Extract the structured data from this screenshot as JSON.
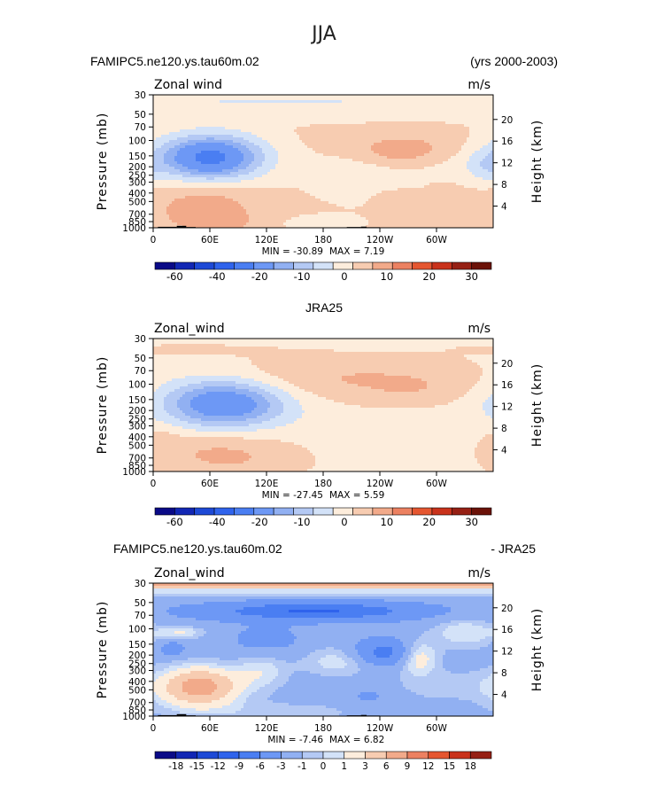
{
  "figure": {
    "title": "JJA",
    "top_case": "FAMIPC5.ne120.ys.tau60m.02",
    "years": "(yrs 2000-2003)",
    "mid_case": "JRA25",
    "diff_case": "FAMIPC5.ne120.ys.tau60m.02",
    "diff_suffix": "- JRA25"
  },
  "chart_data": [
    {
      "type": "heatmap",
      "panel_title": "FAMIPC5.ne120.ys.tau60m.02",
      "variable_label": "Zonal wind",
      "units": "m/s",
      "xlabel": "",
      "ylabel": "Pressure (mb)",
      "y2label": "Height (km)",
      "x_ticks": [
        "0",
        "60E",
        "120E",
        "180",
        "120W",
        "60W"
      ],
      "x_tick_values": [
        0,
        60,
        120,
        180,
        240,
        300
      ],
      "xlim": [
        0,
        360
      ],
      "y_ticks": [
        "30",
        "50",
        "70",
        "100",
        "150",
        "200",
        "250",
        "300",
        "400",
        "500",
        "700",
        "850",
        "1000"
      ],
      "y_tick_values": [
        30,
        50,
        70,
        100,
        150,
        200,
        250,
        300,
        400,
        500,
        700,
        850,
        1000
      ],
      "ylim": [
        1000,
        30
      ],
      "height_ticks": [
        "4",
        "8",
        "12",
        "16",
        "20"
      ],
      "height_tick_values": [
        4,
        8,
        12,
        16,
        20
      ],
      "min_label": "MIN = -30.89",
      "max_label": "MAX = 7.19",
      "min": -30.89,
      "max": 7.19,
      "colorbar_labels": [
        "-60",
        "-40",
        "-20",
        "-10",
        "0",
        "10",
        "20",
        "30"
      ],
      "levels": [
        -70,
        -60,
        -50,
        -40,
        -30,
        -20,
        -15,
        -10,
        -5,
        0,
        5,
        10,
        15,
        20,
        25,
        30
      ],
      "colors": [
        "#0a0a87",
        "#1227b4",
        "#1d49d6",
        "#2f63ec",
        "#4a7ef2",
        "#6d98f5",
        "#91b0f2",
        "#b4c9f4",
        "#d3e2f8",
        "#fdeddc",
        "#f7ccb1",
        "#f2aa8a",
        "#ec8161",
        "#e55630",
        "#c9321b",
        "#962014",
        "#6b1208"
      ],
      "background_value": 1,
      "features": [
        {
          "lon": 60,
          "p": 155,
          "dlon": 40,
          "dp": 0.42,
          "amp": -31
        },
        {
          "lon": 62,
          "p": 160,
          "dlon": 18,
          "dp": 0.2,
          "amp": -4
        },
        {
          "lon": 90,
          "p": 40,
          "dlon": 200,
          "dp": 0.3,
          "amp": -4
        },
        {
          "lon": 270,
          "p": 135,
          "dlon": 35,
          "dp": 0.28,
          "amp": 7.2
        },
        {
          "lon": 245,
          "p": 120,
          "dlon": 40,
          "dp": 0.25,
          "amp": 2
        },
        {
          "lon": 55,
          "p": 620,
          "dlon": 35,
          "dp": 0.45,
          "amp": 8
        },
        {
          "lon": 80,
          "p": 850,
          "dlon": 20,
          "dp": 0.15,
          "amp": 3
        },
        {
          "lon": 160,
          "p": 35,
          "dlon": 120,
          "dp": 0.1,
          "amp": -3
        },
        {
          "lon": 220,
          "p": 250,
          "dlon": 40,
          "dp": 0.5,
          "amp": -4
        },
        {
          "lon": 250,
          "p": 450,
          "dlon": 15,
          "dp": 0.2,
          "amp": 2
        },
        {
          "lon": 300,
          "p": 170,
          "dlon": 25,
          "dp": 0.3,
          "amp": -3
        },
        {
          "lon": 350,
          "p": 200,
          "dlon": 15,
          "dp": 0.3,
          "amp": -6
        },
        {
          "lon": 175,
          "p": 900,
          "dlon": 40,
          "dp": 0.2,
          "amp": -2
        }
      ],
      "topography": [
        [
          5,
          25,
          975
        ],
        [
          25,
          35,
          950
        ],
        [
          35,
          45,
          980
        ],
        [
          205,
          220,
          980
        ],
        [
          220,
          226,
          970
        ],
        [
          226,
          240,
          985
        ]
      ]
    },
    {
      "type": "heatmap",
      "panel_title": "JRA25",
      "variable_label": "Zonal_wind",
      "units": "m/s",
      "xlabel": "",
      "ylabel": "Pressure (mb)",
      "y2label": "Height (km)",
      "x_ticks": [
        "0",
        "60E",
        "120E",
        "180",
        "120W",
        "60W"
      ],
      "x_tick_values": [
        0,
        60,
        120,
        180,
        240,
        300
      ],
      "xlim": [
        0,
        360
      ],
      "y_ticks": [
        "30",
        "50",
        "70",
        "100",
        "150",
        "200",
        "250",
        "300",
        "400",
        "500",
        "700",
        "850",
        "1000"
      ],
      "y_tick_values": [
        30,
        50,
        70,
        100,
        150,
        200,
        250,
        300,
        400,
        500,
        700,
        850,
        1000
      ],
      "ylim": [
        1000,
        30
      ],
      "height_ticks": [
        "4",
        "8",
        "12",
        "16",
        "20"
      ],
      "height_tick_values": [
        4,
        8,
        12,
        16,
        20
      ],
      "min_label": "MIN = -27.45",
      "max_label": "MAX = 5.59",
      "min": -27.45,
      "max": 5.59,
      "colorbar_labels": [
        "-60",
        "-40",
        "-20",
        "-10",
        "0",
        "10",
        "20",
        "30"
      ],
      "levels": [
        -70,
        -60,
        -50,
        -40,
        -30,
        -20,
        -15,
        -10,
        -5,
        0,
        5,
        10,
        15,
        20,
        25,
        30
      ],
      "colors": [
        "#0a0a87",
        "#1227b4",
        "#1d49d6",
        "#2f63ec",
        "#4a7ef2",
        "#6d98f5",
        "#91b0f2",
        "#b4c9f4",
        "#d3e2f8",
        "#fdeddc",
        "#f7ccb1",
        "#f2aa8a",
        "#ec8161",
        "#e55630",
        "#c9321b",
        "#962014",
        "#6b1208"
      ],
      "background_value": -2,
      "features": [
        {
          "lon": 75,
          "p": 165,
          "dlon": 45,
          "dp": 0.45,
          "amp": -26
        },
        {
          "lon": 200,
          "p": 85,
          "dlon": 110,
          "dp": 0.45,
          "amp": 7
        },
        {
          "lon": 280,
          "p": 120,
          "dlon": 40,
          "dp": 0.3,
          "amp": 3
        },
        {
          "lon": 70,
          "p": 620,
          "dlon": 50,
          "dp": 0.45,
          "amp": 8
        },
        {
          "lon": 80,
          "p": 720,
          "dlon": 10,
          "dp": 0.08,
          "amp": 2
        },
        {
          "lon": 40,
          "p": 38,
          "dlon": 60,
          "dp": 0.15,
          "amp": 3
        },
        {
          "lon": 150,
          "p": 33,
          "dlon": 250,
          "dp": 0.06,
          "amp": -2
        },
        {
          "lon": 10,
          "p": 500,
          "dlon": 15,
          "dp": 0.5,
          "amp": 3
        },
        {
          "lon": 140,
          "p": 800,
          "dlon": 30,
          "dp": 0.3,
          "amp": 2
        }
      ],
      "topography": []
    },
    {
      "type": "heatmap",
      "panel_title": "FAMIPC5.ne120.ys.tau60m.02 - JRA25",
      "variable_label": "Zonal_wind",
      "units": "m/s",
      "xlabel": "",
      "ylabel": "Pressure (mb)",
      "y2label": "Height (km)",
      "x_ticks": [
        "0",
        "60E",
        "120E",
        "180",
        "120W",
        "60W"
      ],
      "x_tick_values": [
        0,
        60,
        120,
        180,
        240,
        300
      ],
      "xlim": [
        0,
        360
      ],
      "y_ticks": [
        "30",
        "50",
        "70",
        "100",
        "150",
        "200",
        "250",
        "300",
        "400",
        "500",
        "700",
        "850",
        "1000"
      ],
      "y_tick_values": [
        30,
        50,
        70,
        100,
        150,
        200,
        250,
        300,
        400,
        500,
        700,
        850,
        1000
      ],
      "ylim": [
        1000,
        30
      ],
      "height_ticks": [
        "4",
        "8",
        "12",
        "16",
        "20"
      ],
      "height_tick_values": [
        4,
        8,
        12,
        16,
        20
      ],
      "min_label": "MIN = -7.46",
      "max_label": "MAX = 6.82",
      "min": -7.46,
      "max": 6.82,
      "colorbar_labels": [
        "-18",
        "-15",
        "-12",
        "-9",
        "-6",
        "-3",
        "-1",
        "0",
        "1",
        "3",
        "6",
        "9",
        "12",
        "15",
        "18"
      ],
      "levels": [
        -18,
        -15,
        -12,
        -9,
        -6,
        -3,
        -1,
        0,
        1,
        3,
        6,
        9,
        12,
        15,
        18
      ],
      "colors": [
        "#0a0a87",
        "#1227b4",
        "#1d49d6",
        "#2f63ec",
        "#4a7ef2",
        "#6d98f5",
        "#91b0f2",
        "#b4c9f4",
        "#d3e2f8",
        "#fdeddc",
        "#f7ccb1",
        "#f2aa8a",
        "#ec8161",
        "#e55630",
        "#c9321b",
        "#962014"
      ],
      "background_value": -2,
      "features": [
        {
          "lon": 180,
          "p": 31,
          "dlon": 400,
          "dp": 0.07,
          "amp": 9
        },
        {
          "lon": 180,
          "p": 38,
          "dlon": 400,
          "dp": 0.08,
          "amp": 2.5
        },
        {
          "lon": 170,
          "p": 62,
          "dlon": 65,
          "dp": 0.15,
          "amp": -5.5
        },
        {
          "lon": 175,
          "p": 65,
          "dlon": 120,
          "dp": 0.2,
          "amp": -2
        },
        {
          "lon": 50,
          "p": 460,
          "dlon": 25,
          "dp": 0.3,
          "amp": 7
        },
        {
          "lon": 45,
          "p": 480,
          "dlon": 40,
          "dp": 0.5,
          "amp": 3
        },
        {
          "lon": 30,
          "p": 110,
          "dlon": 18,
          "dp": 0.12,
          "amp": 3
        },
        {
          "lon": 200,
          "p": 230,
          "dlon": 30,
          "dp": 0.3,
          "amp": 3
        },
        {
          "lon": 115,
          "p": 300,
          "dlon": 20,
          "dp": 0.35,
          "amp": 2.5
        },
        {
          "lon": 245,
          "p": 190,
          "dlon": 25,
          "dp": 0.25,
          "amp": -6
        },
        {
          "lon": 280,
          "p": 210,
          "dlon": 15,
          "dp": 0.3,
          "amp": 5
        },
        {
          "lon": 330,
          "p": 110,
          "dlon": 25,
          "dp": 0.3,
          "amp": 3
        },
        {
          "lon": 20,
          "p": 170,
          "dlon": 10,
          "dp": 0.15,
          "amp": -3
        },
        {
          "lon": 120,
          "p": 140,
          "dlon": 30,
          "dp": 0.3,
          "amp": -2
        },
        {
          "lon": 150,
          "p": 900,
          "dlon": 70,
          "dp": 0.2,
          "amp": 1.5
        },
        {
          "lon": 300,
          "p": 450,
          "dlon": 40,
          "dp": 0.3,
          "amp": 1.5
        },
        {
          "lon": 230,
          "p": 600,
          "dlon": 20,
          "dp": 0.3,
          "amp": -1.5
        }
      ],
      "topography": [
        [
          5,
          25,
          975
        ],
        [
          25,
          35,
          950
        ],
        [
          35,
          45,
          980
        ],
        [
          205,
          220,
          980
        ],
        [
          220,
          226,
          970
        ],
        [
          226,
          240,
          985
        ]
      ]
    }
  ]
}
